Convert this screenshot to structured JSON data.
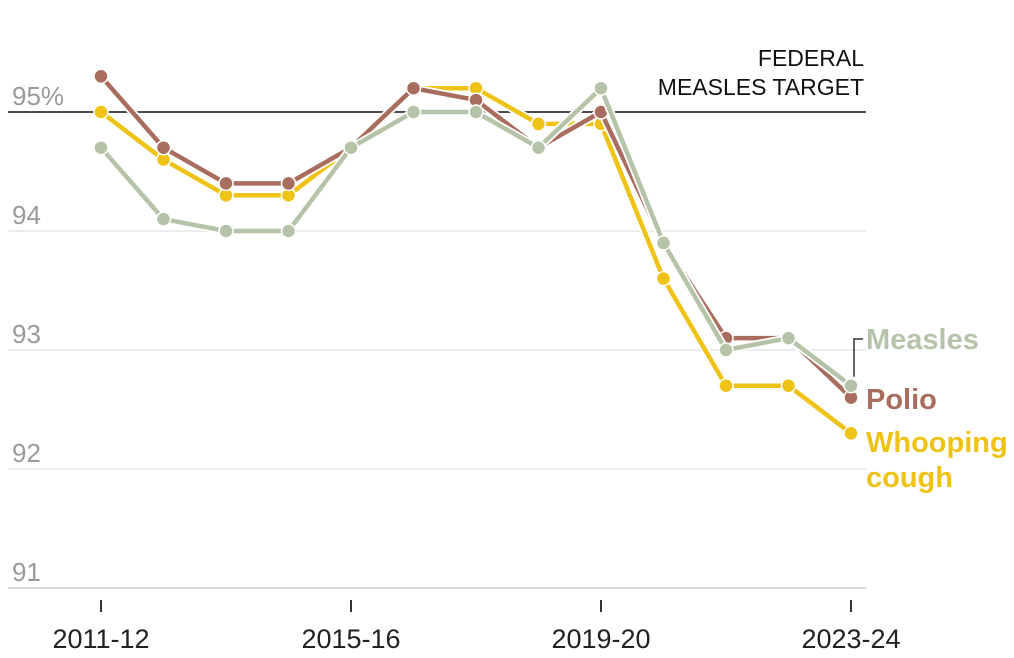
{
  "chart_data": {
    "type": "line",
    "title": "",
    "xlabel": "",
    "ylabel": "",
    "ylim": [
      91,
      95.8
    ],
    "y_ticks": [
      {
        "value": 95,
        "label": "95%"
      },
      {
        "value": 94,
        "label": "94"
      },
      {
        "value": 93,
        "label": "93"
      },
      {
        "value": 92,
        "label": "92"
      },
      {
        "value": 91,
        "label": "91"
      }
    ],
    "x": [
      "2011-12",
      "2012-13",
      "2013-14",
      "2014-15",
      "2015-16",
      "2016-17",
      "2017-18",
      "2018-19",
      "2019-20",
      "2020-21",
      "2021-22",
      "2022-23",
      "2023-24"
    ],
    "x_tick_labels": [
      {
        "index": 0,
        "label": "2011-12"
      },
      {
        "index": 4,
        "label": "2015-16"
      },
      {
        "index": 8,
        "label": "2019-20"
      },
      {
        "index": 12,
        "label": "2023-24"
      }
    ],
    "reference_line": {
      "value": 95,
      "label_lines": [
        "FEDERAL",
        "MEASLES TARGET"
      ]
    },
    "grid": true,
    "legend": "direct labels at right end of lines",
    "series": [
      {
        "name": "Measles",
        "label_lines": [
          "Measles"
        ],
        "color": "#b5c4a8",
        "values": [
          94.7,
          94.1,
          94.0,
          94.0,
          94.7,
          95.0,
          95.0,
          94.7,
          95.2,
          93.9,
          93.0,
          93.1,
          92.7
        ]
      },
      {
        "name": "Polio",
        "label_lines": [
          "Polio"
        ],
        "color": "#a86d5e",
        "values": [
          95.3,
          94.7,
          94.4,
          94.4,
          94.7,
          95.2,
          95.1,
          94.7,
          95.0,
          93.9,
          93.1,
          93.1,
          92.6
        ]
      },
      {
        "name": "Whooping cough",
        "label_lines": [
          "Whooping",
          "cough"
        ],
        "color": "#eec316",
        "values": [
          95.0,
          94.6,
          94.3,
          94.3,
          94.7,
          95.2,
          95.2,
          94.9,
          94.9,
          93.6,
          92.7,
          92.7,
          92.3
        ]
      }
    ]
  }
}
